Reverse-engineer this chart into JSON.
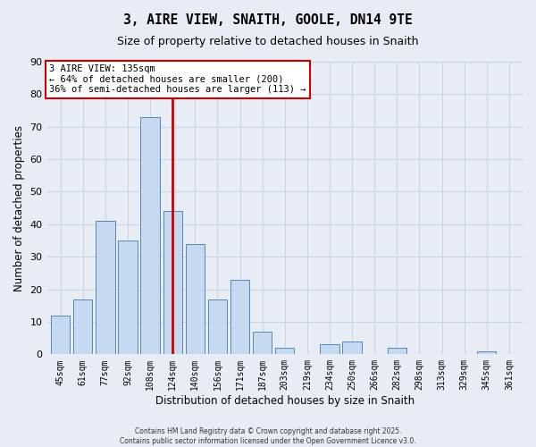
{
  "title": "3, AIRE VIEW, SNAITH, GOOLE, DN14 9TE",
  "subtitle": "Size of property relative to detached houses in Snaith",
  "xlabel": "Distribution of detached houses by size in Snaith",
  "ylabel": "Number of detached properties",
  "bar_labels": [
    "45sqm",
    "61sqm",
    "77sqm",
    "92sqm",
    "108sqm",
    "124sqm",
    "140sqm",
    "156sqm",
    "171sqm",
    "187sqm",
    "203sqm",
    "219sqm",
    "234sqm",
    "250sqm",
    "266sqm",
    "282sqm",
    "298sqm",
    "313sqm",
    "329sqm",
    "345sqm",
    "361sqm"
  ],
  "bar_values": [
    12,
    17,
    41,
    35,
    73,
    44,
    34,
    17,
    23,
    7,
    2,
    0,
    3,
    4,
    0,
    2,
    0,
    0,
    0,
    1,
    0
  ],
  "bar_color": "#c7d9f0",
  "bar_edge_color": "#5588bb",
  "grid_color": "#c8d4e8",
  "bg_color": "#e8edf5",
  "vline_color": "#cc0000",
  "vline_x_index": 5.5,
  "annotation_title": "3 AIRE VIEW: 135sqm",
  "annotation_line1": "← 64% of detached houses are smaller (200)",
  "annotation_line2": "36% of semi-detached houses are larger (113) →",
  "annotation_box_color": "#ffffff",
  "annotation_box_edge": "#cc0000",
  "ylim": [
    0,
    90
  ],
  "yticks": [
    0,
    10,
    20,
    30,
    40,
    50,
    60,
    70,
    80,
    90
  ],
  "footer1": "Contains HM Land Registry data © Crown copyright and database right 2025.",
  "footer2": "Contains public sector information licensed under the Open Government Licence v3.0."
}
